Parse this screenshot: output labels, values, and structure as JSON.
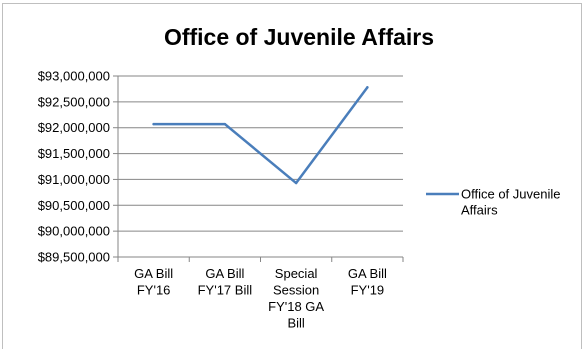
{
  "chart_data": {
    "type": "line",
    "title": "Office of Juvenile Affairs",
    "xlabel": "",
    "ylabel": "",
    "categories": [
      [
        "GA Bill",
        "FY'16"
      ],
      [
        "GA Bill",
        "FY'17 Bill"
      ],
      [
        "Special",
        "Session",
        "FY'18 GA",
        "Bill"
      ],
      [
        "GA Bill",
        "FY'19"
      ]
    ],
    "series": [
      {
        "name": [
          "Office of Juvenile",
          "Affairs"
        ],
        "color": "#4a7ebb",
        "values": [
          92070000,
          92070000,
          90930000,
          92780000
        ]
      }
    ],
    "ylim": [
      89500000,
      93000000
    ],
    "yticks": [
      93000000,
      92500000,
      92000000,
      91500000,
      91000000,
      90500000,
      90000000,
      89500000
    ],
    "ytick_labels": [
      "$93,000,000",
      "$92,500,000",
      "$92,000,000",
      "$91,500,000",
      "$91,000,000",
      "$90,500,000",
      "$90,000,000",
      "$89,500,000"
    ],
    "grid": true,
    "legend": "right"
  }
}
